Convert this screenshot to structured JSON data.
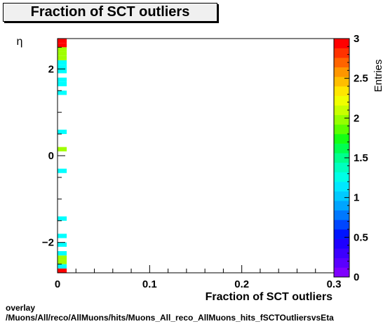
{
  "title": "Fraction of SCT outliers",
  "chart_data": {
    "type": "heatmap",
    "title": "Fraction of SCT outliers",
    "xlabel": "Fraction of SCT outliers",
    "ylabel": "η",
    "zlabel": "Entries",
    "xlim": [
      0,
      0.3
    ],
    "ylim": [
      -2.7,
      2.7
    ],
    "zlim": [
      0,
      3
    ],
    "x_ticks": [
      "0",
      "0.1",
      "0.2",
      "0.3"
    ],
    "x_tick_values": [
      0,
      0.1,
      0.2,
      0.3
    ],
    "y_ticks": [
      "−2",
      "0",
      "2"
    ],
    "y_tick_values": [
      -2,
      0,
      2
    ],
    "z_ticks": [
      "0",
      "0.5",
      "1",
      "1.5",
      "2",
      "2.5",
      "3"
    ],
    "z_tick_values": [
      0,
      0.5,
      1,
      1.5,
      2,
      2.5,
      3
    ],
    "x_bin_width": 0.01,
    "y_bin_width": 0.1,
    "cells": [
      {
        "x": 0.005,
        "eta": -2.65,
        "value": 3
      },
      {
        "x": 0.005,
        "eta": -2.55,
        "value": 1
      },
      {
        "x": 0.005,
        "eta": -2.45,
        "value": 2
      },
      {
        "x": 0.005,
        "eta": -2.35,
        "value": 2
      },
      {
        "x": 0.005,
        "eta": -2.25,
        "value": 1
      },
      {
        "x": 0.005,
        "eta": -2.05,
        "value": 1
      },
      {
        "x": 0.005,
        "eta": -1.85,
        "value": 1
      },
      {
        "x": 0.005,
        "eta": -1.45,
        "value": 1
      },
      {
        "x": 0.005,
        "eta": -0.35,
        "value": 1
      },
      {
        "x": 0.005,
        "eta": 0.15,
        "value": 2
      },
      {
        "x": 0.005,
        "eta": 0.55,
        "value": 1
      },
      {
        "x": 0.005,
        "eta": 1.45,
        "value": 1
      },
      {
        "x": 0.005,
        "eta": 1.65,
        "value": 1
      },
      {
        "x": 0.005,
        "eta": 1.75,
        "value": 1
      },
      {
        "x": 0.005,
        "eta": 1.95,
        "value": 1
      },
      {
        "x": 0.005,
        "eta": 2.05,
        "value": 1
      },
      {
        "x": 0.005,
        "eta": 2.15,
        "value": 1
      },
      {
        "x": 0.005,
        "eta": 2.25,
        "value": 2
      },
      {
        "x": 0.005,
        "eta": 2.35,
        "value": 2
      },
      {
        "x": 0.005,
        "eta": 2.45,
        "value": 2
      },
      {
        "x": 0.005,
        "eta": 2.55,
        "value": 3
      },
      {
        "x": 0.005,
        "eta": 2.65,
        "value": 3
      }
    ],
    "palette": [
      "#7f00ff",
      "#5a00ff",
      "#3c00ff",
      "#1e00ff",
      "#0014ff",
      "#0046ff",
      "#0078ff",
      "#00a5ff",
      "#00caff",
      "#00e8ff",
      "#00ffe6",
      "#00ffbe",
      "#00ff8c",
      "#00ff50",
      "#14ff14",
      "#5aff00",
      "#96ff00",
      "#c8ff00",
      "#f0ff00",
      "#ffe600",
      "#ffbe00",
      "#ff9600",
      "#ff6400",
      "#ff3200",
      "#ff0000"
    ],
    "colors": {
      "value_1": "#00ffff",
      "value_2": "#a0ff00",
      "value_3": "#ff0000"
    }
  },
  "footer": {
    "line1": "overlay",
    "line2": "/Muons/All/reco/AllMuons/hits/Muons_All_reco_AllMuons_hits_fSCTOutliersvsEta"
  }
}
